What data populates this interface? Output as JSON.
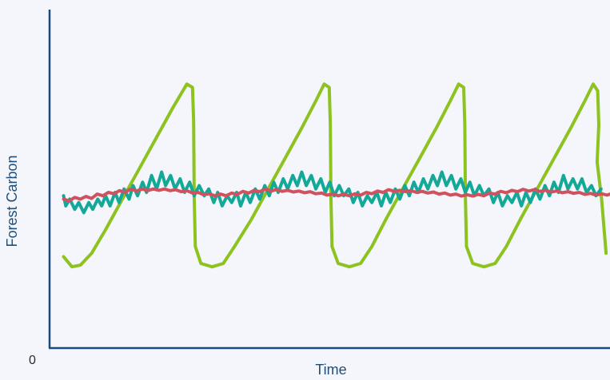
{
  "chart_data": {
    "type": "line",
    "title": "",
    "xlabel": "Time",
    "ylabel": "Forest Carbon",
    "y_tick_labels": [
      "0"
    ],
    "ylim": [
      0,
      100
    ],
    "xlim": [
      0,
      100
    ],
    "grid": false,
    "legend": "none",
    "series": [
      {
        "color": "#8dc21f",
        "points": [
          [
            2.5,
            27
          ],
          [
            4,
            24
          ],
          [
            5.5,
            24.5
          ],
          [
            7.5,
            28
          ],
          [
            10,
            35
          ],
          [
            13,
            44
          ],
          [
            16,
            53
          ],
          [
            19,
            62
          ],
          [
            22,
            71
          ],
          [
            24.5,
            78
          ],
          [
            25.5,
            77
          ],
          [
            25.7,
            67
          ],
          [
            25.8,
            45
          ],
          [
            26,
            30
          ],
          [
            27,
            25
          ],
          [
            29,
            24
          ],
          [
            31,
            25
          ],
          [
            33,
            30
          ],
          [
            36,
            38
          ],
          [
            39,
            47
          ],
          [
            42,
            56
          ],
          [
            45,
            65
          ],
          [
            47.5,
            73
          ],
          [
            49,
            78
          ],
          [
            49.9,
            77
          ],
          [
            50.1,
            66
          ],
          [
            50.2,
            45
          ],
          [
            50.4,
            30
          ],
          [
            51.5,
            25
          ],
          [
            53.5,
            24
          ],
          [
            55.5,
            25
          ],
          [
            57.5,
            30
          ],
          [
            60,
            38
          ],
          [
            63,
            47
          ],
          [
            66,
            56
          ],
          [
            69,
            65
          ],
          [
            71.5,
            73
          ],
          [
            73,
            78
          ],
          [
            73.9,
            77
          ],
          [
            74.1,
            66
          ],
          [
            74.2,
            45
          ],
          [
            74.4,
            30
          ],
          [
            75.5,
            25
          ],
          [
            77.5,
            24
          ],
          [
            79.5,
            25
          ],
          [
            81.5,
            30
          ],
          [
            84,
            38
          ],
          [
            87,
            47
          ],
          [
            90,
            56
          ],
          [
            93,
            65
          ],
          [
            95.5,
            73
          ],
          [
            97,
            78
          ],
          [
            97.8,
            76
          ],
          [
            98,
            66
          ],
          [
            97.7,
            55
          ],
          [
            98.5,
            44
          ],
          [
            99.3,
            28
          ]
        ]
      },
      {
        "color": "#14a898",
        "points": [
          [
            2.5,
            45
          ],
          [
            2.9,
            42
          ],
          [
            3.6,
            44
          ],
          [
            4.5,
            41
          ],
          [
            5.2,
            43
          ],
          [
            6.1,
            40
          ],
          [
            7,
            43
          ],
          [
            7.7,
            41
          ],
          [
            8.6,
            44
          ],
          [
            9.3,
            42
          ],
          [
            10,
            45
          ],
          [
            10.8,
            42
          ],
          [
            11.7,
            46
          ],
          [
            12.4,
            43
          ],
          [
            13.3,
            47
          ],
          [
            14.2,
            44
          ],
          [
            14.9,
            48
          ],
          [
            15.7,
            45
          ],
          [
            16.6,
            49
          ],
          [
            17.3,
            46
          ],
          [
            18.2,
            51
          ],
          [
            19.1,
            47
          ],
          [
            20,
            52
          ],
          [
            20.7,
            48
          ],
          [
            21.6,
            51
          ],
          [
            22.4,
            47
          ],
          [
            23.3,
            50
          ],
          [
            24.1,
            46
          ],
          [
            25,
            49
          ],
          [
            25.8,
            45
          ],
          [
            26.7,
            48
          ],
          [
            27.6,
            45
          ],
          [
            28.4,
            47
          ],
          [
            29.3,
            43
          ],
          [
            30,
            46
          ],
          [
            30.8,
            42
          ],
          [
            31.7,
            45
          ],
          [
            32.5,
            43
          ],
          [
            33.4,
            46
          ],
          [
            34.1,
            42
          ],
          [
            35,
            46
          ],
          [
            35.8,
            43
          ],
          [
            36.7,
            47
          ],
          [
            37.5,
            44
          ],
          [
            38.4,
            48
          ],
          [
            39.2,
            45
          ],
          [
            40,
            49
          ],
          [
            40.8,
            46
          ],
          [
            41.7,
            50
          ],
          [
            42.5,
            47
          ],
          [
            43.4,
            51
          ],
          [
            44.2,
            48
          ],
          [
            45,
            52
          ],
          [
            45.8,
            48
          ],
          [
            46.7,
            51
          ],
          [
            47.5,
            47
          ],
          [
            48.4,
            50
          ],
          [
            49.2,
            46
          ],
          [
            50,
            49
          ],
          [
            50.8,
            45
          ],
          [
            51.7,
            48
          ],
          [
            52.5,
            45
          ],
          [
            53.4,
            47
          ],
          [
            54.2,
            43
          ],
          [
            55,
            46
          ],
          [
            55.8,
            42
          ],
          [
            56.7,
            45
          ],
          [
            57.5,
            43
          ],
          [
            58.4,
            46
          ],
          [
            59.2,
            42
          ],
          [
            60,
            46
          ],
          [
            60.8,
            43
          ],
          [
            61.7,
            47
          ],
          [
            62.5,
            44
          ],
          [
            63.4,
            48
          ],
          [
            64.2,
            45
          ],
          [
            65,
            49
          ],
          [
            65.8,
            46
          ],
          [
            66.7,
            50
          ],
          [
            67.5,
            47
          ],
          [
            68.4,
            51
          ],
          [
            69.2,
            48
          ],
          [
            70,
            52
          ],
          [
            70.8,
            48
          ],
          [
            71.7,
            51
          ],
          [
            72.5,
            47
          ],
          [
            73.4,
            50
          ],
          [
            74.2,
            46
          ],
          [
            75,
            49
          ],
          [
            75.8,
            45
          ],
          [
            76.7,
            48
          ],
          [
            77.5,
            45
          ],
          [
            78.4,
            47
          ],
          [
            79.2,
            43
          ],
          [
            80,
            46
          ],
          [
            80.8,
            42
          ],
          [
            81.7,
            45
          ],
          [
            82.5,
            43
          ],
          [
            83.4,
            46
          ],
          [
            84.2,
            42
          ],
          [
            85,
            46
          ],
          [
            85.8,
            43
          ],
          [
            86.7,
            47
          ],
          [
            87.5,
            44
          ],
          [
            88.4,
            48
          ],
          [
            89.2,
            45
          ],
          [
            90,
            49
          ],
          [
            90.8,
            46
          ],
          [
            91.7,
            51
          ],
          [
            92.5,
            47
          ],
          [
            93.4,
            50
          ],
          [
            94.2,
            47
          ],
          [
            95,
            50
          ],
          [
            95.8,
            46
          ],
          [
            96.7,
            48
          ],
          [
            97.5,
            45
          ],
          [
            98.4,
            47
          ]
        ]
      },
      {
        "color": "#d0525e",
        "points": [
          [
            2.5,
            44
          ],
          [
            3.5,
            43.5
          ],
          [
            4.5,
            44.5
          ],
          [
            5.5,
            44
          ],
          [
            6.5,
            44.8
          ],
          [
            7.5,
            44.2
          ],
          [
            8.5,
            45.5
          ],
          [
            9.5,
            45
          ],
          [
            10.5,
            46
          ],
          [
            11.5,
            45.6
          ],
          [
            12.5,
            46.5
          ],
          [
            13.5,
            46
          ],
          [
            14.5,
            47
          ],
          [
            15.5,
            46.4
          ],
          [
            16.5,
            47
          ],
          [
            17.5,
            46.5
          ],
          [
            18.5,
            47
          ],
          [
            19.5,
            46.6
          ],
          [
            20.5,
            47
          ],
          [
            21.5,
            46.5
          ],
          [
            22.5,
            46.8
          ],
          [
            23.5,
            46.2
          ],
          [
            24.5,
            46.5
          ],
          [
            25.5,
            45.8
          ],
          [
            26.5,
            46
          ],
          [
            27.5,
            45.3
          ],
          [
            28.5,
            45.6
          ],
          [
            29.5,
            45
          ],
          [
            30.5,
            45.5
          ],
          [
            31.5,
            45
          ],
          [
            32.5,
            45.8
          ],
          [
            33.5,
            45.4
          ],
          [
            34.5,
            46.3
          ],
          [
            35.5,
            45.8
          ],
          [
            36.5,
            46.6
          ],
          [
            37.5,
            46.2
          ],
          [
            38.5,
            47
          ],
          [
            39.5,
            46.4
          ],
          [
            40.5,
            46.8
          ],
          [
            41.5,
            46.3
          ],
          [
            42.5,
            46.6
          ],
          [
            43.5,
            46.1
          ],
          [
            44.5,
            46.4
          ],
          [
            45.5,
            45.9
          ],
          [
            46.5,
            46.2
          ],
          [
            47.5,
            45.6
          ],
          [
            48.5,
            45.8
          ],
          [
            49.5,
            45.2
          ],
          [
            50.5,
            45.5
          ],
          [
            51.5,
            45
          ],
          [
            52.5,
            45.4
          ],
          [
            53.5,
            45
          ],
          [
            54.5,
            45.6
          ],
          [
            55.5,
            45.2
          ],
          [
            56.5,
            46
          ],
          [
            57.5,
            45.6
          ],
          [
            58.5,
            46.4
          ],
          [
            59.5,
            46
          ],
          [
            60.5,
            46.8
          ],
          [
            61.5,
            46.3
          ],
          [
            62.5,
            46.6
          ],
          [
            63.5,
            46.2
          ],
          [
            64.5,
            46.5
          ],
          [
            65.5,
            46
          ],
          [
            66.5,
            46.3
          ],
          [
            67.5,
            45.8
          ],
          [
            68.5,
            46.1
          ],
          [
            69.5,
            45.5
          ],
          [
            70.5,
            45.8
          ],
          [
            71.5,
            45.2
          ],
          [
            72.5,
            45.5
          ],
          [
            73.5,
            44.9
          ],
          [
            74.5,
            45.3
          ],
          [
            75.5,
            44.9
          ],
          [
            76.5,
            45.4
          ],
          [
            77.5,
            45
          ],
          [
            78.5,
            45.8
          ],
          [
            79.5,
            45.5
          ],
          [
            80.5,
            46.3
          ],
          [
            81.5,
            45.9
          ],
          [
            82.5,
            46.6
          ],
          [
            83.5,
            46.2
          ],
          [
            84.5,
            46.9
          ],
          [
            85.5,
            46.4
          ],
          [
            86.5,
            46.8
          ],
          [
            87.5,
            46.3
          ],
          [
            88.5,
            46.6
          ],
          [
            89.5,
            46.1
          ],
          [
            90.5,
            46.4
          ],
          [
            91.5,
            45.9
          ],
          [
            92.5,
            46.2
          ],
          [
            93.5,
            45.7
          ],
          [
            94.5,
            46
          ],
          [
            95.5,
            45.4
          ],
          [
            96.5,
            45.7
          ],
          [
            97.5,
            45.2
          ],
          [
            98.5,
            45.6
          ],
          [
            99.5,
            45.2
          ],
          [
            100,
            45.5
          ]
        ]
      }
    ]
  },
  "style": {
    "axis_color": "#1c4a78",
    "background": "#f4f6fb"
  }
}
